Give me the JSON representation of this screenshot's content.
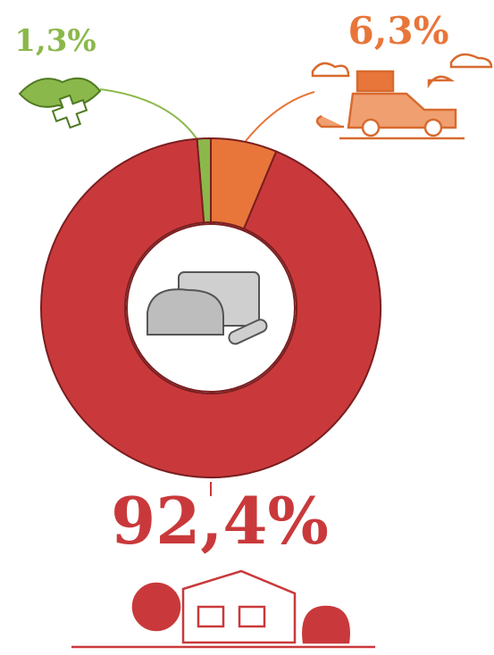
{
  "chart_data": {
    "type": "pie",
    "donut": true,
    "values": [
      1.3,
      6.3,
      92.4
    ],
    "value_labels": [
      "1,3%",
      "6,3%",
      "92,4%"
    ],
    "colors": [
      "#8bb84a",
      "#e8763a",
      "#c9393b"
    ]
  }
}
